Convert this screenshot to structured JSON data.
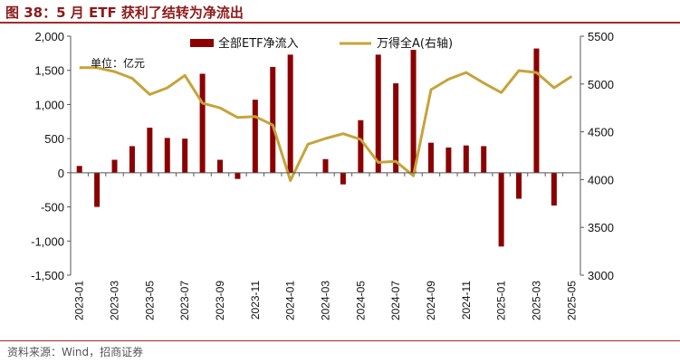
{
  "header": {
    "title": "图 38：5 月 ETF 获利了结转为净流出"
  },
  "footer": {
    "source": "资料来源：Wind，招商证券"
  },
  "colors": {
    "bar": "#8b0000",
    "line": "#c5a43a",
    "title": "#8b1a1a",
    "rule": "#a52a2a"
  },
  "chart_data": {
    "type": "bar",
    "unit_label": "单位：亿元",
    "x": [
      "2023-01",
      "2023-02",
      "2023-03",
      "2023-04",
      "2023-05",
      "2023-06",
      "2023-07",
      "2023-08",
      "2023-09",
      "2023-10",
      "2023-11",
      "2023-12",
      "2024-01",
      "2024-02",
      "2024-03",
      "2024-04",
      "2024-05",
      "2024-06",
      "2024-07",
      "2024-08",
      "2024-09",
      "2024-10",
      "2024-11",
      "2024-12",
      "2025-01",
      "2025-02",
      "2025-03",
      "2025-04",
      "2025-05"
    ],
    "x_tick_labels": [
      "2023-01",
      "2023-03",
      "2023-05",
      "2023-07",
      "2023-09",
      "2023-11",
      "2024-01",
      "2024-03",
      "2024-05",
      "2024-07",
      "2024-09",
      "2024-11",
      "2025-01",
      "2025-03",
      "2025-05"
    ],
    "series": [
      {
        "name": "全部ETF净流入",
        "type": "bar",
        "axis": "left",
        "values": [
          100,
          -500,
          190,
          390,
          660,
          510,
          500,
          1450,
          190,
          -90,
          1070,
          1550,
          1730,
          null,
          200,
          -170,
          770,
          1730,
          1310,
          1800,
          440,
          370,
          400,
          390,
          -1080,
          -380,
          1820,
          -480,
          null
        ]
      },
      {
        "name": "万得全A(右轴)",
        "type": "line",
        "axis": "right",
        "values": [
          5170,
          5170,
          5130,
          5060,
          4890,
          4960,
          5090,
          4800,
          4750,
          4650,
          4660,
          4570,
          3990,
          4370,
          4430,
          4480,
          4420,
          4180,
          4190,
          4040,
          4940,
          5050,
          5120,
          5010,
          4910,
          5140,
          5120,
          4960,
          5080
        ]
      }
    ],
    "y_left": {
      "ylim": [
        -1500,
        2000
      ],
      "ticks": [
        "2,000",
        "1,500",
        "1,000",
        "500",
        "0",
        "-500",
        "-1,000",
        "-1,500"
      ]
    },
    "y_right": {
      "ylim": [
        3000,
        5500
      ],
      "ticks": [
        "5500",
        "5000",
        "4500",
        "4000",
        "3500",
        "3000"
      ]
    },
    "legend_placement": "top",
    "grid": false
  }
}
